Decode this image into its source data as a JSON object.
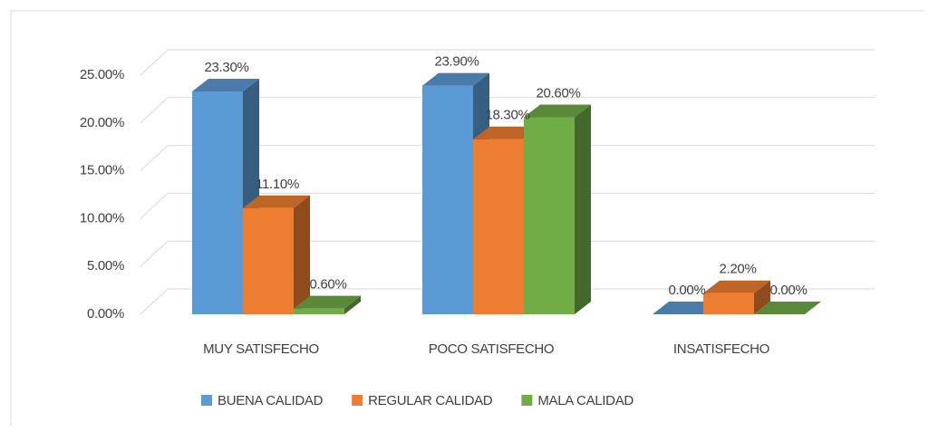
{
  "chart_data": {
    "type": "bar3d",
    "categories": [
      "MUY SATISFECHO",
      "POCO SATISFECHO",
      "INSATISFECHO"
    ],
    "series": [
      {
        "name": "BUENA CALIDAD",
        "color": "#5b9bd5",
        "values": [
          23.3,
          23.9,
          0
        ],
        "value_labels": [
          "23.30%",
          "23.90%",
          "0.00%"
        ]
      },
      {
        "name": "REGULAR CALIDAD",
        "color": "#ed7d31",
        "values": [
          11.1,
          18.3,
          2.2
        ],
        "value_labels": [
          "11.10%",
          "18.30%",
          "2.20%"
        ]
      },
      {
        "name": "MALA CALIDAD",
        "color": "#70ad47",
        "values": [
          0.6,
          20.6,
          0
        ],
        "value_labels": [
          "0.60%",
          "20.60%",
          "0.00%"
        ]
      }
    ],
    "ylim": [
      0,
      25
    ],
    "yticks": [
      {
        "value": 0,
        "label": "0.00%"
      },
      {
        "value": 5,
        "label": "5.00%"
      },
      {
        "value": 10,
        "label": "10.00%"
      },
      {
        "value": 15,
        "label": "15.00%"
      },
      {
        "value": 20,
        "label": "20.00%"
      },
      {
        "value": 25,
        "label": "25.00%"
      }
    ],
    "grid": true,
    "legend": "bottom"
  }
}
